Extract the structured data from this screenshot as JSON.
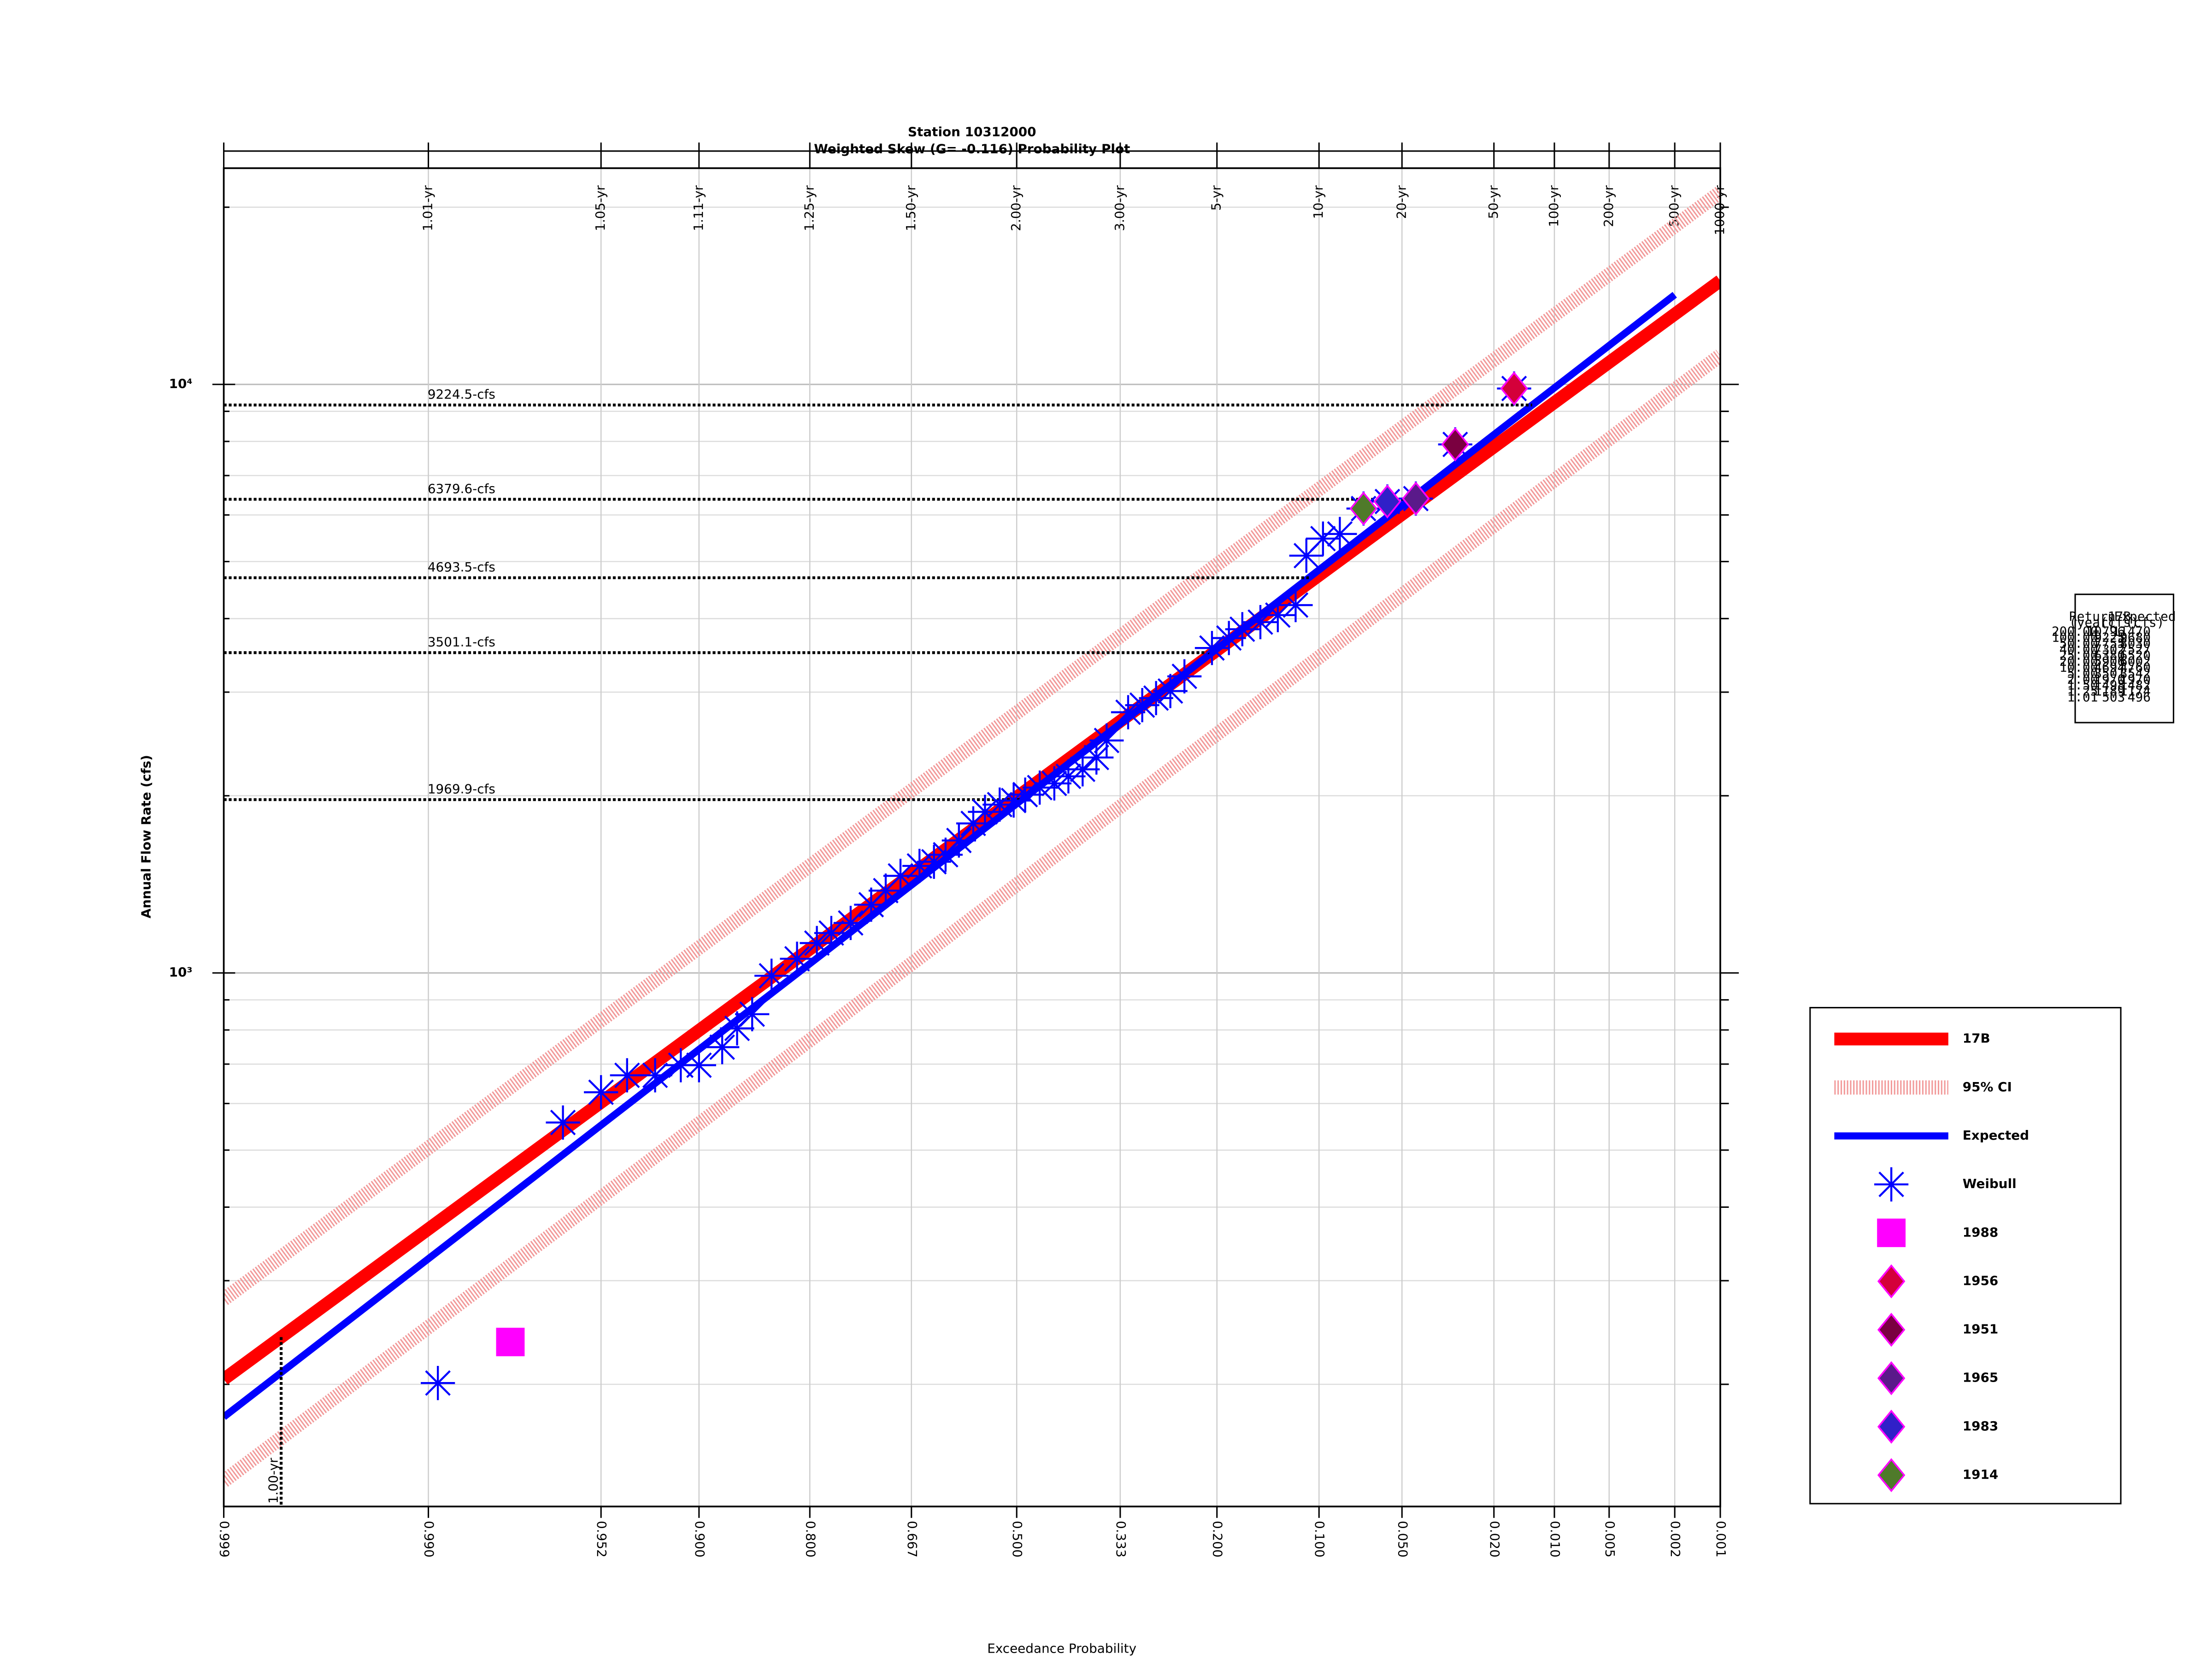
{
  "chart_data": {
    "type": "probability",
    "title": "Station 10312000",
    "subtitle": "Weighted Skew (G= -0.116) Probability Plot",
    "x_label": "Exceedance Probability",
    "y_label": "Annual Flow Rate (cfs)",
    "x_scale": "pearson3",
    "skew": -0.116,
    "y_scale": "log",
    "grid": true,
    "legend": "outside right",
    "xlim": [
      0.999,
      0.001
    ],
    "xticks": [
      {
        "value": 0.999,
        "label": "0.999"
      },
      {
        "value": 0.99,
        "label": "0.990"
      },
      {
        "value": 0.952,
        "label": "0.952"
      },
      {
        "value": 0.9,
        "label": "0.900"
      },
      {
        "value": 0.8,
        "label": "0.800"
      },
      {
        "value": 0.667,
        "label": "0.667"
      },
      {
        "value": 0.5,
        "label": "0.500"
      },
      {
        "value": 0.333,
        "label": "0.333"
      },
      {
        "value": 0.2,
        "label": "0.200"
      },
      {
        "value": 0.1,
        "label": "0.100"
      },
      {
        "value": 0.05,
        "label": "0.050"
      },
      {
        "value": 0.02,
        "label": "0.020"
      },
      {
        "value": 0.01,
        "label": "0.010"
      },
      {
        "value": 0.005,
        "label": "0.005"
      },
      {
        "value": 0.002,
        "label": "0.002"
      },
      {
        "value": 0.001,
        "label": "0.001"
      }
    ],
    "x2ticks": [
      {
        "value": 0.99,
        "label": "1.01-yr"
      },
      {
        "value": 0.952,
        "label": "1.05-yr"
      },
      {
        "value": 0.9,
        "label": "1.11-yr"
      },
      {
        "value": 0.8,
        "label": "1.25-yr"
      },
      {
        "value": 0.667,
        "label": "1.50-yr"
      },
      {
        "value": 0.5,
        "label": "2.00-yr"
      },
      {
        "value": 0.333,
        "label": "3.00-yr"
      },
      {
        "value": 0.2,
        "label": "5-yr"
      },
      {
        "value": 0.1,
        "label": "10-yr"
      },
      {
        "value": 0.05,
        "label": "20-yr"
      },
      {
        "value": 0.02,
        "label": "50-yr"
      },
      {
        "value": 0.01,
        "label": "100-yr"
      },
      {
        "value": 0.005,
        "label": "200-yr"
      },
      {
        "value": 0.002,
        "label": "500-yr"
      },
      {
        "value": 0.001,
        "label": "1000-yr"
      }
    ],
    "ylim": [
      124,
      23300
    ],
    "yticks": [
      {
        "value": 1000,
        "label": "10³"
      },
      {
        "value": 10000,
        "label": "10⁴"
      }
    ],
    "yminor": [
      200,
      300,
      400,
      500,
      600,
      700,
      800,
      900,
      2000,
      3000,
      4000,
      5000,
      6000,
      7000,
      8000,
      9000,
      20000
    ],
    "lines": [
      {
        "name": "17B",
        "color": "#ff0000",
        "x": [
          0.999,
          0.001
        ],
        "values": [
          204,
          15000
        ]
      },
      {
        "name": "95% CI",
        "color": "#f29a9a",
        "x": [
          0.999,
          0.001
        ],
        "values": [
          279,
          21200
        ],
        "lower": [
          137,
          11200
        ]
      },
      {
        "name": "Expected",
        "color": "#0000ff",
        "x": [
          0.999,
          0.002
        ],
        "values": [
          176,
          14200
        ]
      }
    ],
    "points": [
      {
        "name": "Weibull",
        "marker": "asterisk",
        "color": "#0000ff",
        "x": [
          0.989,
          0.965,
          0.952,
          0.941,
          0.927,
          0.912,
          0.9,
          0.883,
          0.871,
          0.858,
          0.84,
          0.814,
          0.792,
          0.775,
          0.751,
          0.724,
          0.704,
          0.683,
          0.655,
          0.633,
          0.615,
          0.594,
          0.571,
          0.552,
          0.528,
          0.505,
          0.486,
          0.462,
          0.438,
          0.415,
          0.392,
          0.37,
          0.354,
          0.321,
          0.3,
          0.28,
          0.26,
          0.241,
          0.206,
          0.186,
          0.171,
          0.152,
          0.135,
          0.119,
          0.11,
          0.097,
          0.085,
          0.07,
          0.057,
          0.044,
          0.03,
          0.016
        ],
        "values": [
          201,
          557,
          627,
          670,
          670,
          697,
          697,
          748,
          805,
          851,
          989,
          1057,
          1124,
          1169,
          1216,
          1306,
          1380,
          1462,
          1520,
          1545,
          1588,
          1679,
          1795,
          1878,
          1932,
          1963,
          2009,
          2065,
          2099,
          2158,
          2218,
          2323,
          2483,
          2773,
          2851,
          2931,
          3013,
          3191,
          3565,
          3707,
          3837,
          3945,
          4055,
          4217,
          5117,
          5470,
          5570,
          6152,
          6324,
          6397,
          7907,
          9840
        ]
      },
      {
        "name": "1988",
        "marker": "square",
        "color": "#ff00ff",
        "x": [
          0.978
        ],
        "values": [
          236
        ]
      },
      {
        "name": "1956",
        "marker": "diamond",
        "color": "#d4003a",
        "x": [
          0.016
        ],
        "values": [
          9840
        ]
      },
      {
        "name": "1951",
        "marker": "diamond",
        "color": "#7a0040",
        "x": [
          0.03
        ],
        "values": [
          7907
        ]
      },
      {
        "name": "1965",
        "marker": "diamond",
        "color": "#5a1a8a",
        "x": [
          0.044
        ],
        "values": [
          6397
        ]
      },
      {
        "name": "1983",
        "marker": "diamond",
        "color": "#3020c8",
        "x": [
          0.057
        ],
        "values": [
          6324
        ]
      },
      {
        "name": "1914",
        "marker": "diamond",
        "color": "#4f7a2a",
        "x": [
          0.07
        ],
        "values": [
          6152
        ]
      }
    ],
    "reference_lines": [
      {
        "value": 9224.5,
        "label": "9224.5-cfs"
      },
      {
        "value": 6379.6,
        "label": "6379.6-cfs"
      },
      {
        "value": 4693.5,
        "label": "4693.5-cfs"
      },
      {
        "value": 3501.1,
        "label": "3501.1-cfs"
      },
      {
        "value": 1969.9,
        "label": "1969.9-cfs"
      }
    ],
    "return_period_line": {
      "label": "1.00-yr",
      "x": 0.998
    }
  },
  "summary_table": {
    "header": [
      [
        "Return",
        "17B",
        "Expected"
      ],
      [
        "(year)",
        "(cfs)",
        "(cfs)"
      ]
    ],
    "rows": [
      [
        "200.00",
        "10796",
        "11470"
      ],
      [
        "100.00",
        "9225",
        "9680"
      ],
      [
        "50.00",
        "7755",
        "8030"
      ],
      [
        "40.00",
        "7302",
        "7527"
      ],
      [
        "25.00",
        "6380",
        "6520"
      ],
      [
        "20.00",
        "5906",
        "6002"
      ],
      [
        "10.00",
        "4694",
        "4760"
      ],
      [
        "5.00",
        "3501",
        "3542"
      ],
      [
        "2.00",
        "1970",
        "1970"
      ],
      [
        "1.50",
        "1498",
        "1482"
      ],
      [
        "1.25",
        "1189",
        "1174"
      ],
      [
        "1.01",
        "503",
        "496"
      ]
    ]
  }
}
